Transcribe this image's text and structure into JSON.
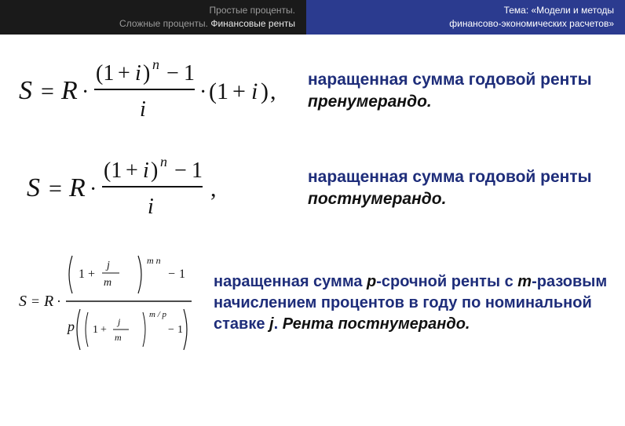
{
  "header": {
    "left_line1_dim": "Простые проценты.",
    "left_line2_dim": "Сложные проценты.",
    "left_line2_white": " Финансовые ренты",
    "right_line1": "Тема: «Модели и методы",
    "right_line2": "финансово-экономических расчетов»"
  },
  "rows": [
    {
      "desc_html": "наращенная сумма годовой ренты <em>пренумерандо.</em>"
    },
    {
      "desc_html": "наращенная сумма годовой ренты <em>постнумерандо.</em>"
    },
    {
      "desc_html": "наращенная сумма <em>p</em>-срочной ренты с <em>m</em>-разовым начислением процентов в году по номинальной ставке <em>j</em>. <em>Рента постнумерандо.</em>"
    }
  ],
  "colors": {
    "header_left_bg": "#1a1a1a",
    "header_right_bg": "#2b3b8f",
    "desc_color": "#1e2d7a",
    "formula_color": "#111111",
    "background": "#ffffff"
  },
  "formulas": {
    "f1": "S = R · ((1+i)^n − 1)/i · (1+i),",
    "f2": "S = R · ((1+i)^n − 1)/i ,",
    "f3": "S = R · ((1+j/m)^{mn} − 1) / ( p((1+j/m)^{m/p} − 1) )"
  }
}
